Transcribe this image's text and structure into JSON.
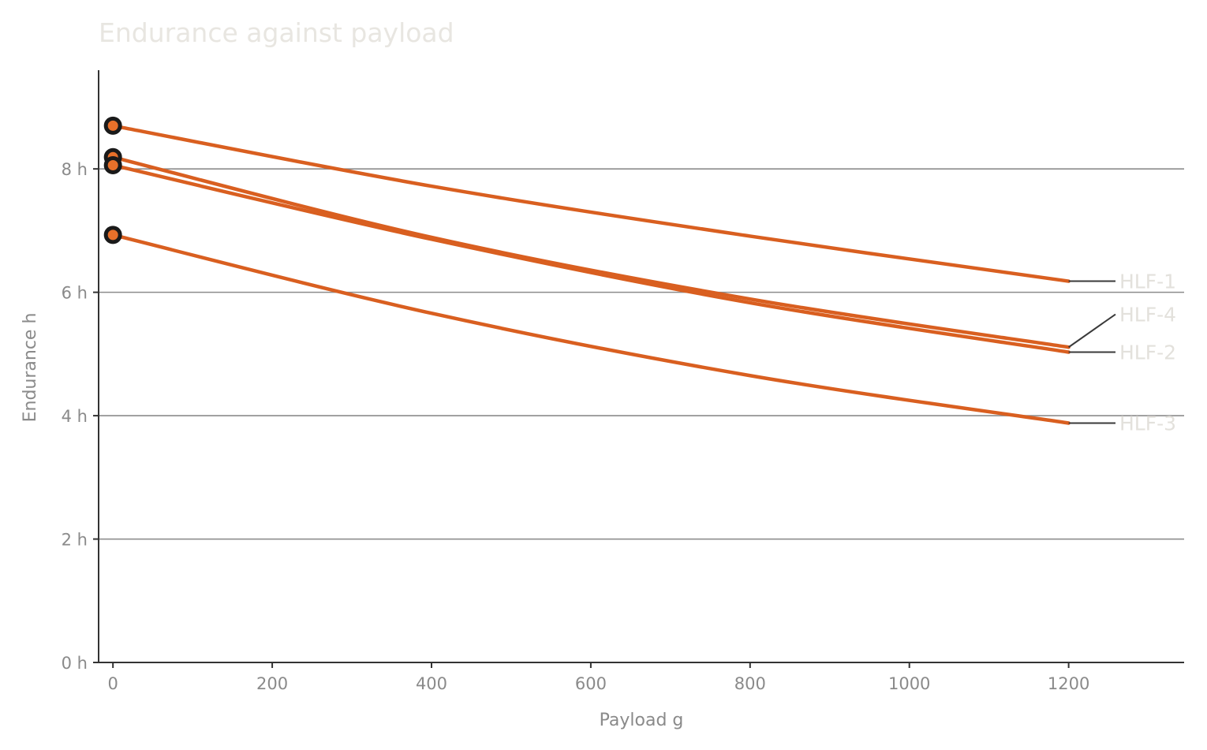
{
  "chart_data": {
    "type": "line",
    "title": "Endurance against payload",
    "xlabel": "Payload  g",
    "ylabel": "Endurance  h",
    "xlim": [
      -18,
      1345
    ],
    "ylim": [
      0,
      9.6
    ],
    "x_ticks": [
      {
        "value": 0,
        "label": "0"
      },
      {
        "value": 200,
        "label": "200"
      },
      {
        "value": 400,
        "label": "400"
      },
      {
        "value": 600,
        "label": "600"
      },
      {
        "value": 800,
        "label": "800"
      },
      {
        "value": 1000,
        "label": "1000"
      },
      {
        "value": 1200,
        "label": "1200"
      }
    ],
    "y_ticks": [
      {
        "value": 0,
        "label": "0 h"
      },
      {
        "value": 2,
        "label": "2 h"
      },
      {
        "value": 4,
        "label": "4 h"
      },
      {
        "value": 6,
        "label": "6 h"
      },
      {
        "value": 8,
        "label": "8 h"
      }
    ],
    "grid": "horizontal",
    "series": [
      {
        "name": "HLF-1",
        "x": [
          0,
          400,
          800,
          1200
        ],
        "values": [
          8.7,
          7.72,
          6.91,
          6.18
        ]
      },
      {
        "name": "HLF-4",
        "x": [
          0,
          400,
          800,
          1200
        ],
        "values": [
          8.19,
          6.89,
          5.89,
          5.11
        ]
      },
      {
        "name": "HLF-2",
        "x": [
          0,
          400,
          800,
          1200
        ],
        "values": [
          8.06,
          6.86,
          5.83,
          5.03
        ]
      },
      {
        "name": "HLF-3",
        "x": [
          0,
          400,
          800,
          1200
        ],
        "values": [
          6.93,
          5.66,
          4.65,
          3.88
        ]
      }
    ],
    "colors": {
      "line": "#d95f20",
      "marker_fill": "#e8702a",
      "marker_edge": "#1a1a1a",
      "grid": "#8c8c8c",
      "axis": "#333333",
      "leader": "#3a3a3a"
    }
  }
}
